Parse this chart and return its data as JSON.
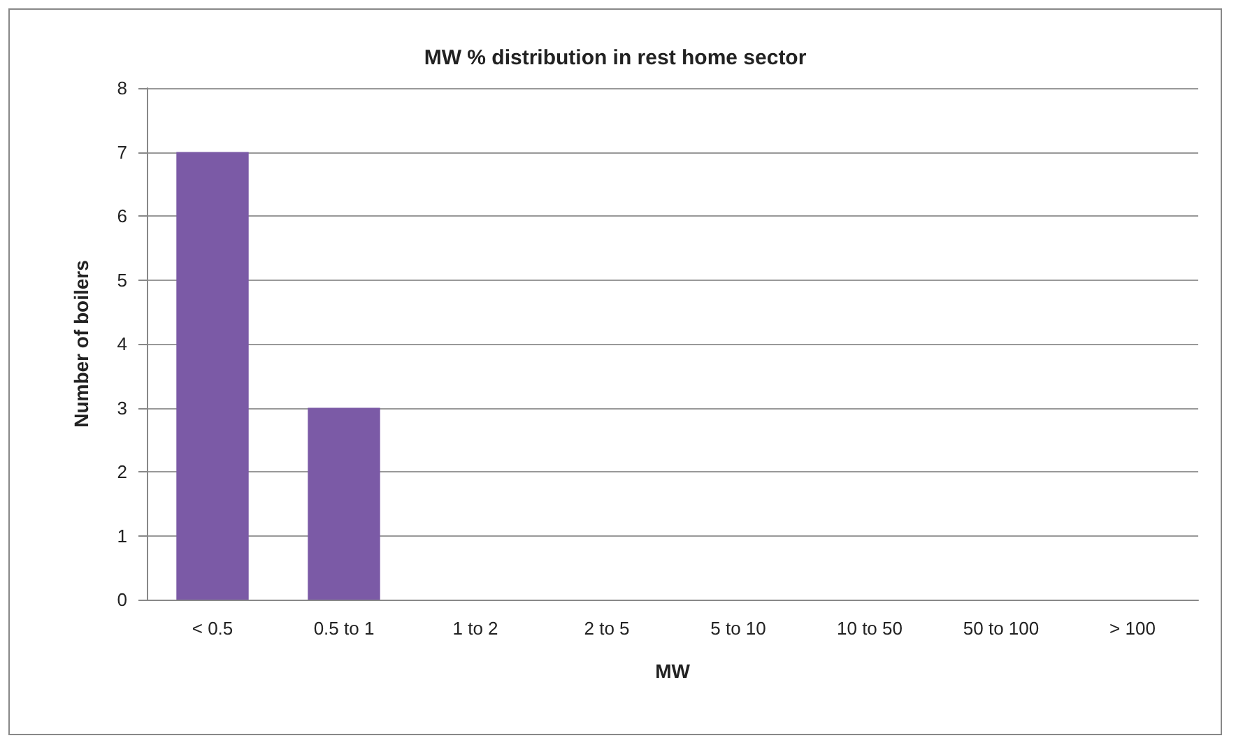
{
  "chart_data": {
    "type": "bar",
    "title": "MW % distribution in rest home sector",
    "xlabel": "MW",
    "ylabel": "Number of boilers",
    "categories": [
      "< 0.5",
      "0.5 to 1",
      "1 to 2",
      "2 to 5",
      "5 to 10",
      "10 to 50",
      "50 to 100",
      "> 100"
    ],
    "values": [
      7,
      3,
      0,
      0,
      0,
      0,
      0,
      0
    ],
    "color": "#7b5aa6",
    "ylim": [
      0,
      8
    ],
    "yticks": [
      0,
      1,
      2,
      3,
      4,
      5,
      6,
      7,
      8
    ],
    "grid": "y"
  }
}
